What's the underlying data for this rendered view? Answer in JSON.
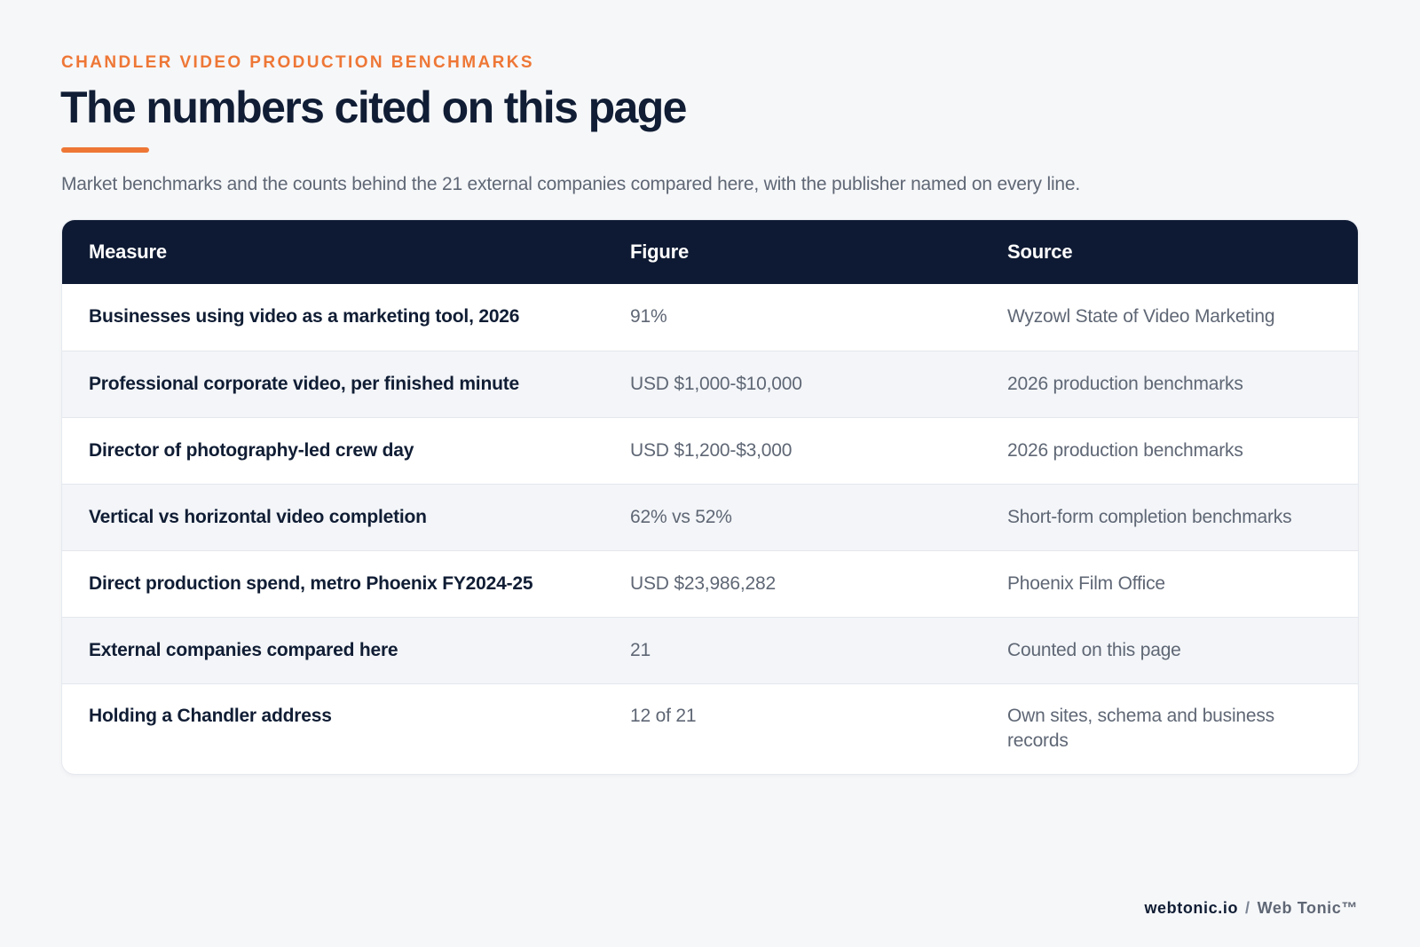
{
  "header": {
    "eyebrow": "CHANDLER VIDEO PRODUCTION BENCHMARKS",
    "title": "The numbers cited on this page",
    "subtitle": "Market benchmarks and the counts behind the 21 external companies compared here, with the publisher named on every line."
  },
  "table": {
    "columns": [
      "Measure",
      "Figure",
      "Source"
    ],
    "rows": [
      {
        "measure": "Businesses using video as a marketing tool, 2026",
        "figure": "91%",
        "source": "Wyzowl State of Video Marketing"
      },
      {
        "measure": "Professional corporate video, per finished minute",
        "figure": "USD $1,000-$10,000",
        "source": "2026 production benchmarks"
      },
      {
        "measure": "Director of photography-led crew day",
        "figure": "USD $1,200-$3,000",
        "source": "2026 production benchmarks"
      },
      {
        "measure": "Vertical vs horizontal video completion",
        "figure": "62% vs 52%",
        "source": "Short-form completion benchmarks"
      },
      {
        "measure": "Direct production spend, metro Phoenix FY2024-25",
        "figure": "USD $23,986,282",
        "source": "Phoenix Film Office"
      },
      {
        "measure": "External companies compared here",
        "figure": "21",
        "source": "Counted on this page"
      },
      {
        "measure": "Holding a Chandler address",
        "figure": "12 of 21",
        "source": "Own sites, schema and business records"
      }
    ]
  },
  "footer": {
    "domain": "webtonic.io",
    "separator": "/",
    "brand": "Web Tonic™"
  },
  "colors": {
    "accent": "#ee7736",
    "navy": "#0e1a33",
    "muted_text": "#5f6775",
    "background": "#f6f7f9"
  }
}
